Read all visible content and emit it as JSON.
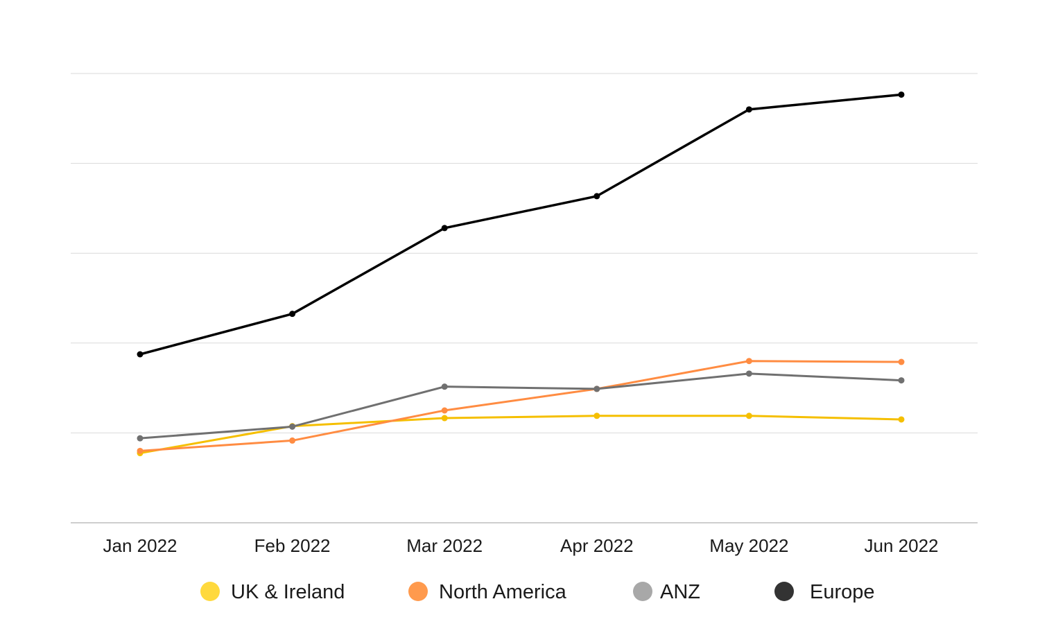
{
  "chart_data": {
    "type": "line",
    "title": "",
    "xlabel": "",
    "ylabel": "",
    "categories": [
      "Jan 2022",
      "Feb 2022",
      "Mar 2022",
      "Apr 2022",
      "May 2022",
      "Jun 2022"
    ],
    "ylim": [
      0,
      100
    ],
    "grid": true,
    "y_tick_labels_shown": false,
    "legend_position": "bottom",
    "series": [
      {
        "name": "UK & Ireland",
        "color": "#FFD93D",
        "line_color": "#F5BF00",
        "values": [
          15.5,
          21.5,
          23.3,
          23.8,
          23.8,
          23.0
        ]
      },
      {
        "name": "North America",
        "color": "#FF9A4D",
        "line_color": "#FF8C42",
        "values": [
          16.0,
          18.3,
          25.0,
          29.8,
          36.0,
          35.8
        ]
      },
      {
        "name": "ANZ",
        "color": "#A8A8A8",
        "line_color": "#707070",
        "values": [
          18.8,
          21.4,
          30.3,
          29.8,
          33.2,
          31.7
        ]
      },
      {
        "name": "Europe",
        "color": "#333333",
        "line_color": "#000000",
        "values": [
          37.5,
          46.5,
          65.6,
          72.7,
          92.0,
          95.3
        ]
      }
    ]
  }
}
